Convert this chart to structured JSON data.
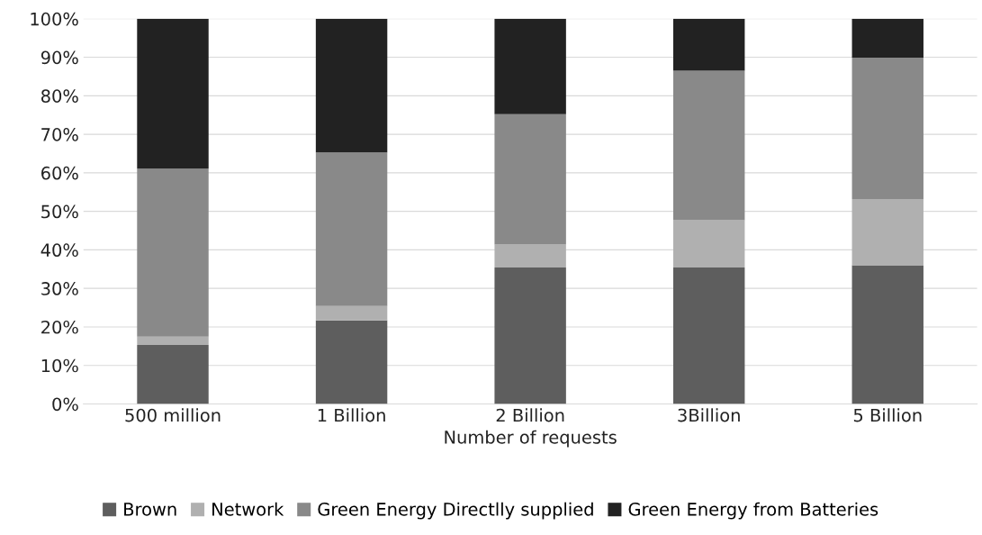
{
  "chart_data": {
    "type": "bar",
    "stacked": true,
    "xlabel": "Number of requests",
    "categories": [
      "500 million",
      "1 Billion",
      "2 Billion",
      "3Billion",
      "5 Billion"
    ],
    "series": [
      {
        "name": "Brown",
        "color": "#5e5e5e",
        "values": [
          15.3,
          21.7,
          35.4,
          35.4,
          36.0
        ]
      },
      {
        "name": "Network",
        "color": "#b0b0b0",
        "values": [
          2.2,
          3.7,
          6.0,
          12.3,
          17.2
        ]
      },
      {
        "name": "Green Energy Directlly supplied",
        "color": "#898989",
        "values": [
          43.6,
          39.9,
          33.8,
          38.8,
          36.7
        ]
      },
      {
        "name": "Green Energy from Batteries",
        "color": "#222222",
        "values": [
          38.9,
          34.7,
          24.8,
          13.5,
          10.1
        ]
      }
    ],
    "ylim": [
      0,
      100
    ],
    "yticks": [
      {
        "value": 0,
        "label": "0%"
      },
      {
        "value": 10,
        "label": "10%"
      },
      {
        "value": 20,
        "label": "20%"
      },
      {
        "value": 30,
        "label": "30%"
      },
      {
        "value": 40,
        "label": "40%"
      },
      {
        "value": 50,
        "label": "50%"
      },
      {
        "value": 60,
        "label": "60%"
      },
      {
        "value": 70,
        "label": "70%"
      },
      {
        "value": 80,
        "label": "80%"
      },
      {
        "value": 90,
        "label": "90%"
      },
      {
        "value": 100,
        "label": "100%"
      }
    ],
    "grid": "y",
    "legend": "bottom"
  }
}
